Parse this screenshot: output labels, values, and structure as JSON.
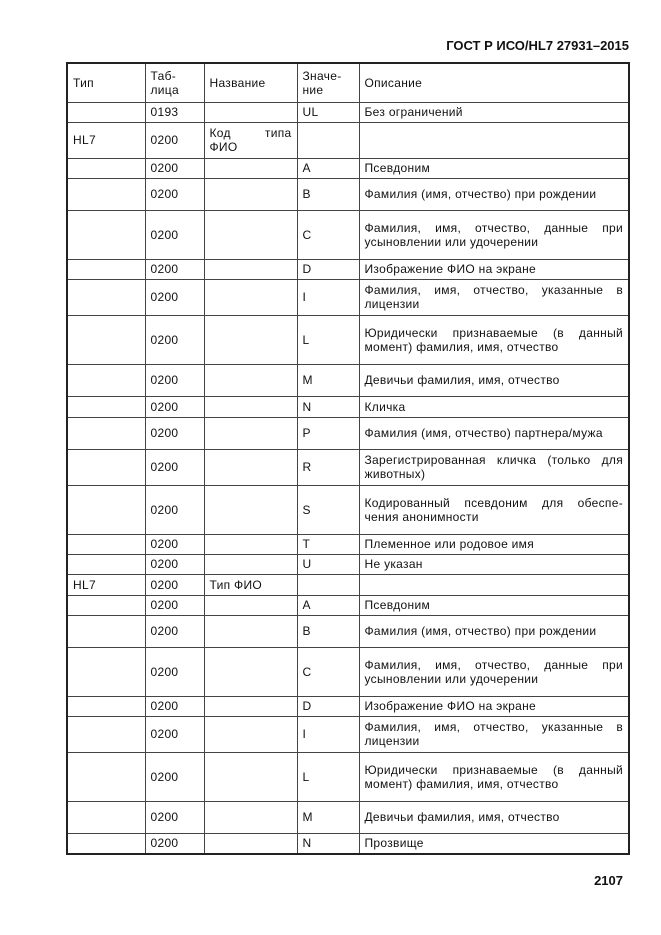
{
  "header": {
    "doc_id": "ГОСТ Р ИСО/HL7 27931–2015"
  },
  "table": {
    "columns": [
      "Тип",
      "Таб-\nлица",
      "Название",
      "Значе-\nние",
      "Описание"
    ],
    "rows": [
      [
        "",
        "0193",
        "",
        "UL",
        "Без ограничений"
      ],
      [
        "HL7",
        "0200",
        "Код типа ФИО",
        "",
        ""
      ],
      [
        "",
        "0200",
        "",
        "A",
        "Псевдоним"
      ],
      [
        "",
        "0200",
        "",
        "B",
        "Фамилия (имя, отчество) при рождении"
      ],
      [
        "",
        "0200",
        "",
        "C",
        "Фамилия, имя, отчество, данные при усыновлении или удочерении"
      ],
      [
        "",
        "0200",
        "",
        "D",
        "Изображение ФИО на экране"
      ],
      [
        "",
        "0200",
        "",
        "I",
        "Фамилия, имя, отчество, указанные в лицензии"
      ],
      [
        "",
        "0200",
        "",
        "L",
        "Юридически признаваемые (в данный момент) фамилия, имя, отчество"
      ],
      [
        "",
        "0200",
        "",
        "M",
        "Девичьи фамилия, имя, отчество"
      ],
      [
        "",
        "0200",
        "",
        "N",
        "Кличка"
      ],
      [
        "",
        "0200",
        "",
        "P",
        "Фамилия (имя, отчество) партнера/мужа"
      ],
      [
        "",
        "0200",
        "",
        "R",
        "Зарегистрированная кличка (только для животных)"
      ],
      [
        "",
        "0200",
        "",
        "S",
        "Кодированный псевдоним для обеспе-чения анонимности"
      ],
      [
        "",
        "0200",
        "",
        "T",
        "Племенное или родовое имя"
      ],
      [
        "",
        "0200",
        "",
        "U",
        "Не указан"
      ],
      [
        "HL7",
        "0200",
        "Тип ФИО",
        "",
        ""
      ],
      [
        "",
        "0200",
        "",
        "A",
        "Псевдоним"
      ],
      [
        "",
        "0200",
        "",
        "B",
        "Фамилия (имя, отчество) при рождении"
      ],
      [
        "",
        "0200",
        "",
        "C",
        "Фамилия, имя, отчество, данные при усыновлении или удочерении"
      ],
      [
        "",
        "0200",
        "",
        "D",
        "Изображение ФИО на экране"
      ],
      [
        "",
        "0200",
        "",
        "I",
        "Фамилия, имя, отчество, указанные в лицензии"
      ],
      [
        "",
        "0200",
        "",
        "L",
        "Юридически признаваемые (в данный момент) фамилия, имя, отчество"
      ],
      [
        "",
        "0200",
        "",
        "M",
        "Девичьи фамилия, имя, отчество"
      ],
      [
        "",
        "0200",
        "",
        "N",
        "Прозвище"
      ]
    ]
  },
  "footer": {
    "page_number": "2107"
  }
}
